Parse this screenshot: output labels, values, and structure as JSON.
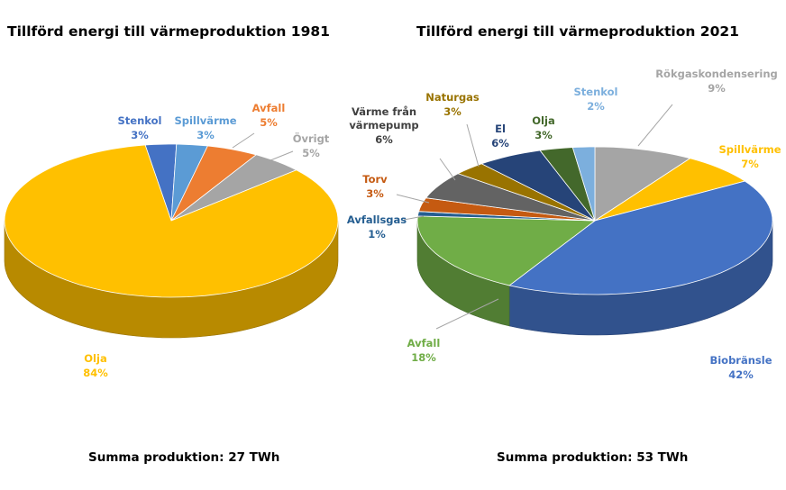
{
  "chart_data": [
    {
      "type": "pie",
      "title": "Tillförd energi till värmeproduktion 1981",
      "footer": "Summa produktion: 27 TWh",
      "slices": [
        {
          "label": "Stenkol",
          "value": 3,
          "display": "3%",
          "color": "#4472c4"
        },
        {
          "label": "Spillvärme",
          "value": 3,
          "display": "3%",
          "color": "#5b9bd5"
        },
        {
          "label": "Avfall",
          "value": 5,
          "display": "5%",
          "color": "#ed7d31"
        },
        {
          "label": "Övrigt",
          "value": 5,
          "display": "5%",
          "color": "#a5a5a5"
        },
        {
          "label": "Olja",
          "value": 84,
          "display": "84%",
          "color": "#ffc000"
        }
      ]
    },
    {
      "type": "pie",
      "title": "Tillförd energi till värmeproduktion 2021",
      "footer": "Summa produktion: 53 TWh",
      "slices": [
        {
          "label": "Rökgaskondensering",
          "value": 9,
          "display": "9%",
          "color": "#a5a5a5"
        },
        {
          "label": "Spillvärme",
          "value": 7,
          "display": "7%",
          "color": "#ffc000"
        },
        {
          "label": "Biobränsle",
          "value": 42,
          "display": "42%",
          "color": "#4472c4"
        },
        {
          "label": "Avfall",
          "value": 18,
          "display": "18%",
          "color": "#70ad47"
        },
        {
          "label": "Avfallsgas",
          "value": 1,
          "display": "1%",
          "color": "#255e91"
        },
        {
          "label": "Torv",
          "value": 3,
          "display": "3%",
          "color": "#c55a11"
        },
        {
          "label": "Värme från värmepump",
          "value": 6,
          "display": "6%",
          "color": "#636363"
        },
        {
          "label": "Naturgas",
          "value": 3,
          "display": "3%",
          "color": "#997300"
        },
        {
          "label": "El",
          "value": 6,
          "display": "6%",
          "color": "#264478"
        },
        {
          "label": "Olja",
          "value": 3,
          "display": "3%",
          "color": "#43682b"
        },
        {
          "label": "Stenkol",
          "value": 2,
          "display": "2%",
          "color": "#7cafdd"
        }
      ]
    }
  ]
}
